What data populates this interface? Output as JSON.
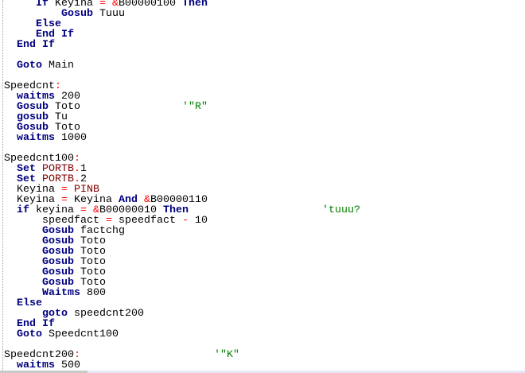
{
  "editor": {
    "lines": [
      [
        [
          "id",
          "     "
        ],
        [
          "kw",
          "If"
        ],
        [
          "id",
          " Keyina "
        ],
        [
          "op",
          "="
        ],
        [
          "id",
          " "
        ],
        [
          "op",
          "&"
        ],
        [
          "id",
          "B00000100 "
        ],
        [
          "kw",
          "Then"
        ]
      ],
      [
        [
          "id",
          "         "
        ],
        [
          "kw",
          "Gosub"
        ],
        [
          "id",
          " Tuuu"
        ]
      ],
      [
        [
          "id",
          "     "
        ],
        [
          "kw",
          "Else"
        ]
      ],
      [
        [
          "id",
          "     "
        ],
        [
          "kw",
          "End If"
        ]
      ],
      [
        [
          "id",
          "  "
        ],
        [
          "kw",
          "End If"
        ]
      ],
      [],
      [
        [
          "id",
          "  "
        ],
        [
          "kw",
          "Goto"
        ],
        [
          "id",
          " Main"
        ]
      ],
      [],
      [
        [
          "id",
          "Speedcnt"
        ],
        [
          "op",
          ":"
        ]
      ],
      [
        [
          "id",
          "  "
        ],
        [
          "kw",
          "waitms"
        ],
        [
          "id",
          " 200"
        ]
      ],
      [
        [
          "id",
          "  "
        ],
        [
          "kw",
          "Gosub"
        ],
        [
          "id",
          " Toto                "
        ],
        [
          "cm",
          "'\"R\""
        ]
      ],
      [
        [
          "id",
          "  "
        ],
        [
          "kw",
          "gosub"
        ],
        [
          "id",
          " Tu"
        ]
      ],
      [
        [
          "id",
          "  "
        ],
        [
          "kw",
          "Gosub"
        ],
        [
          "id",
          " Toto"
        ]
      ],
      [
        [
          "id",
          "  "
        ],
        [
          "kw",
          "waitms"
        ],
        [
          "id",
          " 1000"
        ]
      ],
      [],
      [
        [
          "id",
          "Speedcnt100"
        ],
        [
          "op",
          ":"
        ]
      ],
      [
        [
          "id",
          "  "
        ],
        [
          "kw",
          "Set"
        ],
        [
          "id",
          " "
        ],
        [
          "reg",
          "PORTB"
        ],
        [
          "op",
          "."
        ],
        [
          "id",
          "1"
        ]
      ],
      [
        [
          "id",
          "  "
        ],
        [
          "kw",
          "Set"
        ],
        [
          "id",
          " "
        ],
        [
          "reg",
          "PORTB"
        ],
        [
          "op",
          "."
        ],
        [
          "id",
          "2"
        ]
      ],
      [
        [
          "id",
          "  Keyina "
        ],
        [
          "op",
          "="
        ],
        [
          "id",
          " "
        ],
        [
          "reg",
          "PINB"
        ]
      ],
      [
        [
          "id",
          "  Keyina "
        ],
        [
          "op",
          "="
        ],
        [
          "id",
          " Keyina "
        ],
        [
          "kw",
          "And"
        ],
        [
          "id",
          " "
        ],
        [
          "op",
          "&"
        ],
        [
          "id",
          "B00000110"
        ]
      ],
      [
        [
          "id",
          "  "
        ],
        [
          "kw",
          "if"
        ],
        [
          "id",
          " keyina "
        ],
        [
          "op",
          "="
        ],
        [
          "id",
          " "
        ],
        [
          "op",
          "&"
        ],
        [
          "id",
          "B00000010 "
        ],
        [
          "kw",
          "Then"
        ],
        [
          "id",
          "                     "
        ],
        [
          "cm",
          "'tuuu?"
        ]
      ],
      [
        [
          "id",
          "      speedfact "
        ],
        [
          "op",
          "="
        ],
        [
          "id",
          " speedfact "
        ],
        [
          "op",
          "-"
        ],
        [
          "id",
          " 10"
        ]
      ],
      [
        [
          "id",
          "      "
        ],
        [
          "kw",
          "Gosub"
        ],
        [
          "id",
          " factchg"
        ]
      ],
      [
        [
          "id",
          "      "
        ],
        [
          "kw",
          "Gosub"
        ],
        [
          "id",
          " Toto"
        ]
      ],
      [
        [
          "id",
          "      "
        ],
        [
          "kw",
          "Gosub"
        ],
        [
          "id",
          " Toto"
        ]
      ],
      [
        [
          "id",
          "      "
        ],
        [
          "kw",
          "Gosub"
        ],
        [
          "id",
          " Toto"
        ]
      ],
      [
        [
          "id",
          "      "
        ],
        [
          "kw",
          "Gosub"
        ],
        [
          "id",
          " Toto"
        ]
      ],
      [
        [
          "id",
          "      "
        ],
        [
          "kw",
          "Gosub"
        ],
        [
          "id",
          " Toto"
        ]
      ],
      [
        [
          "id",
          "      "
        ],
        [
          "kw",
          "Waitms"
        ],
        [
          "id",
          " 800"
        ]
      ],
      [
        [
          "id",
          "  "
        ],
        [
          "kw",
          "Else"
        ]
      ],
      [
        [
          "id",
          "      "
        ],
        [
          "kw",
          "goto"
        ],
        [
          "id",
          " speedcnt200"
        ]
      ],
      [
        [
          "id",
          "  "
        ],
        [
          "kw",
          "End If"
        ]
      ],
      [
        [
          "id",
          "  "
        ],
        [
          "kw",
          "Goto"
        ],
        [
          "id",
          " Speedcnt100"
        ]
      ],
      [],
      [
        [
          "id",
          "Speedcnt200"
        ],
        [
          "op",
          ":"
        ],
        [
          "id",
          "                     "
        ],
        [
          "cm",
          "'\"K\""
        ]
      ],
      [
        [
          "id",
          "  "
        ],
        [
          "kw",
          "waitms"
        ],
        [
          "id",
          " 500"
        ]
      ]
    ]
  },
  "colors": {
    "keyword": "#000080",
    "operator": "#ff0000",
    "register": "#800000",
    "comment": "#008000",
    "text": "#000000"
  }
}
